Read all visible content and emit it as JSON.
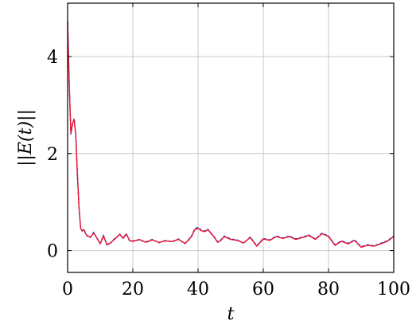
{
  "chart_data": {
    "type": "line",
    "title": "",
    "xlabel": "t",
    "ylabel": "||E(t)||",
    "xlim": [
      0,
      100
    ],
    "ylim": [
      -0.45,
      5.1
    ],
    "xticks": [
      0,
      20,
      40,
      60,
      80,
      100
    ],
    "yticks": [
      0,
      2,
      4
    ],
    "grid": true,
    "series": [
      {
        "color": "#1f3fd6",
        "style": "dashed",
        "x": [
          0,
          0.5,
          1,
          1.5,
          2,
          2.5,
          3,
          3.5,
          4,
          4.5,
          5,
          5.5,
          6,
          7,
          8,
          9,
          10,
          11,
          12,
          13,
          14,
          15,
          16,
          17,
          18,
          19,
          20,
          22,
          24,
          26,
          28,
          30,
          32,
          34,
          36,
          37,
          38,
          39,
          40,
          41,
          42,
          43,
          44,
          45,
          46,
          47,
          48,
          50,
          52,
          54,
          56,
          58,
          60,
          62,
          64,
          66,
          68,
          70,
          72,
          74,
          76,
          78,
          79,
          80,
          82,
          84,
          86,
          88,
          90,
          92,
          94,
          96,
          98,
          100
        ],
        "y": [
          4.7,
          3.4,
          2.4,
          2.6,
          2.72,
          2.4,
          1.6,
          0.9,
          0.45,
          0.4,
          0.44,
          0.36,
          0.3,
          0.27,
          0.38,
          0.25,
          0.15,
          0.32,
          0.12,
          0.14,
          0.22,
          0.28,
          0.33,
          0.26,
          0.35,
          0.2,
          0.2,
          0.22,
          0.18,
          0.23,
          0.16,
          0.21,
          0.18,
          0.24,
          0.14,
          0.22,
          0.3,
          0.45,
          0.48,
          0.42,
          0.4,
          0.44,
          0.35,
          0.28,
          0.18,
          0.22,
          0.3,
          0.24,
          0.22,
          0.15,
          0.28,
          0.1,
          0.25,
          0.22,
          0.3,
          0.26,
          0.3,
          0.24,
          0.28,
          0.32,
          0.24,
          0.36,
          0.33,
          0.3,
          0.12,
          0.2,
          0.15,
          0.22,
          0.08,
          0.12,
          0.1,
          0.15,
          0.2,
          0.3
        ]
      },
      {
        "color": "#e8112d",
        "style": "solid",
        "x": [
          0,
          0.5,
          1,
          1.5,
          2,
          2.5,
          3,
          3.5,
          4,
          4.5,
          5,
          5.5,
          6,
          7,
          8,
          9,
          10,
          11,
          12,
          13,
          14,
          15,
          16,
          17,
          18,
          19,
          20,
          22,
          24,
          26,
          28,
          30,
          32,
          34,
          36,
          37,
          38,
          39,
          40,
          41,
          42,
          43,
          44,
          45,
          46,
          47,
          48,
          50,
          52,
          54,
          56,
          58,
          60,
          62,
          64,
          66,
          68,
          70,
          72,
          74,
          76,
          78,
          79,
          80,
          82,
          84,
          86,
          88,
          90,
          92,
          94,
          96,
          98,
          100
        ],
        "y": [
          4.72,
          3.45,
          2.42,
          2.62,
          2.7,
          2.38,
          1.55,
          0.88,
          0.46,
          0.41,
          0.43,
          0.35,
          0.31,
          0.28,
          0.36,
          0.26,
          0.14,
          0.3,
          0.13,
          0.15,
          0.21,
          0.27,
          0.34,
          0.25,
          0.34,
          0.21,
          0.19,
          0.23,
          0.17,
          0.22,
          0.17,
          0.2,
          0.19,
          0.23,
          0.15,
          0.21,
          0.29,
          0.43,
          0.46,
          0.41,
          0.39,
          0.43,
          0.36,
          0.27,
          0.17,
          0.21,
          0.29,
          0.23,
          0.21,
          0.16,
          0.27,
          0.09,
          0.24,
          0.21,
          0.29,
          0.25,
          0.29,
          0.23,
          0.27,
          0.31,
          0.23,
          0.35,
          0.32,
          0.29,
          0.11,
          0.19,
          0.14,
          0.21,
          0.07,
          0.11,
          0.09,
          0.14,
          0.19,
          0.29
        ]
      }
    ]
  }
}
